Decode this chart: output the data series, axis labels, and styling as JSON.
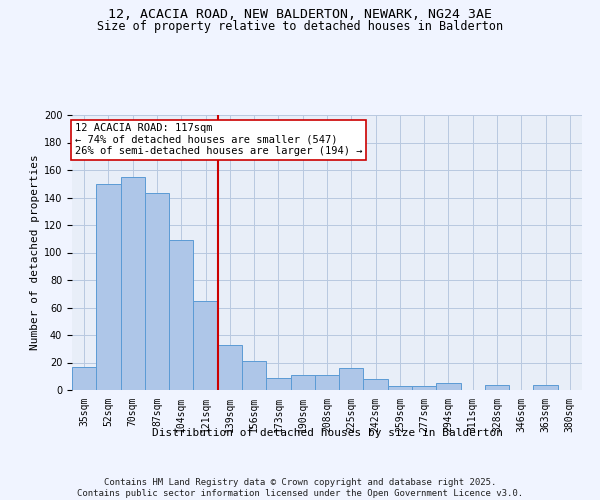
{
  "title_line1": "12, ACACIA ROAD, NEW BALDERTON, NEWARK, NG24 3AE",
  "title_line2": "Size of property relative to detached houses in Balderton",
  "xlabel": "Distribution of detached houses by size in Balderton",
  "ylabel": "Number of detached properties",
  "bar_labels": [
    "35sqm",
    "52sqm",
    "70sqm",
    "87sqm",
    "104sqm",
    "121sqm",
    "139sqm",
    "156sqm",
    "173sqm",
    "190sqm",
    "208sqm",
    "225sqm",
    "242sqm",
    "259sqm",
    "277sqm",
    "294sqm",
    "311sqm",
    "328sqm",
    "346sqm",
    "363sqm",
    "380sqm"
  ],
  "bar_values": [
    17,
    150,
    155,
    143,
    109,
    65,
    33,
    21,
    9,
    11,
    11,
    16,
    8,
    3,
    3,
    5,
    0,
    4,
    0,
    4,
    0
  ],
  "bar_color": "#aec6e8",
  "bar_edge_color": "#5b9bd5",
  "vline_index": 5,
  "vline_color": "#cc0000",
  "annotation_text": "12 ACACIA ROAD: 117sqm\n← 74% of detached houses are smaller (547)\n26% of semi-detached houses are larger (194) →",
  "annotation_box_color": "#ffffff",
  "annotation_box_edge_color": "#cc0000",
  "annotation_fontsize": 7.5,
  "ylim": [
    0,
    200
  ],
  "yticks": [
    0,
    20,
    40,
    60,
    80,
    100,
    120,
    140,
    160,
    180,
    200
  ],
  "background_color": "#f0f4ff",
  "plot_bg_color": "#e8eef8",
  "grid_color": "#b8c8e0",
  "footer_line1": "Contains HM Land Registry data © Crown copyright and database right 2025.",
  "footer_line2": "Contains public sector information licensed under the Open Government Licence v3.0.",
  "title_fontsize": 9.5,
  "subtitle_fontsize": 8.5,
  "axis_label_fontsize": 8,
  "tick_fontsize": 7,
  "footer_fontsize": 6.5
}
